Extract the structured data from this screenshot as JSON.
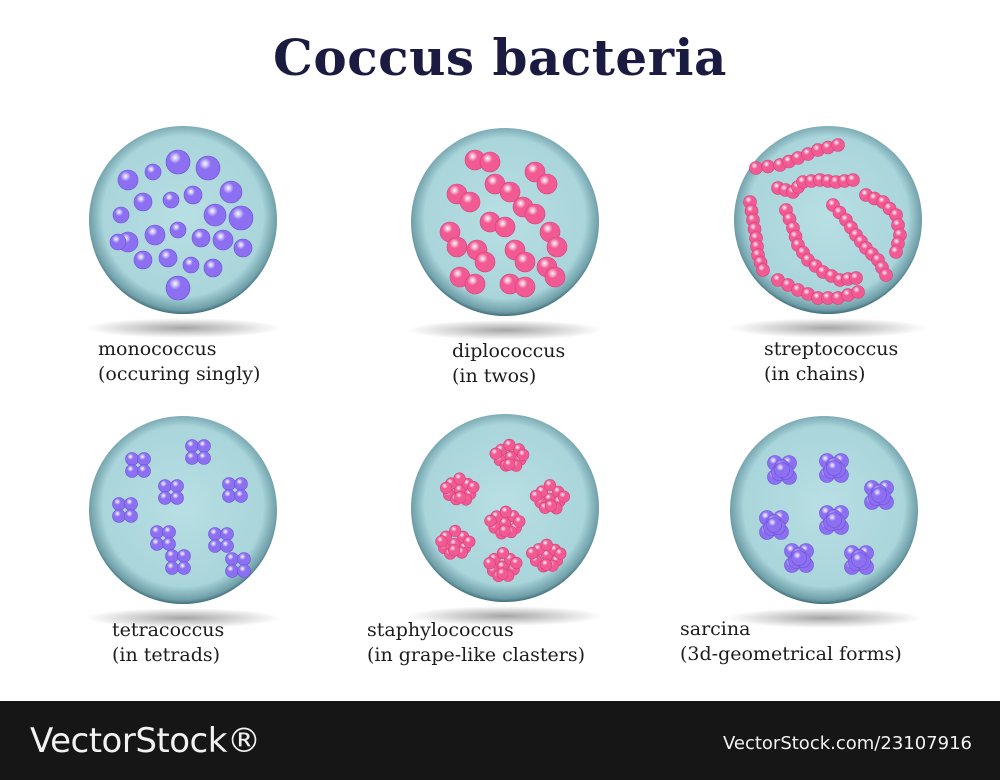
{
  "title": "Coccus bacteria",
  "colors": {
    "title": "#1b1a40",
    "dish": "#a9d5db",
    "dish_edge": "#3f6f7a",
    "violet": "#8d70f2",
    "pink": "#f25a93",
    "footer_bg": "#161616"
  },
  "panels": [
    {
      "name": "monococcus",
      "line1": "monococcus",
      "line2": "(occuring singly)",
      "shape": "single",
      "color": "violet"
    },
    {
      "name": "diplococcus",
      "line1": "diplococcus",
      "line2": "(in twos)",
      "shape": "pairs",
      "color": "pink"
    },
    {
      "name": "streptococcus",
      "line1": "streptococcus",
      "line2": "(in chains)",
      "shape": "chains",
      "color": "pink"
    },
    {
      "name": "tetracoccus",
      "line1": "tetracoccus",
      "line2": "(in tetrads)",
      "shape": "tetrads",
      "color": "violet"
    },
    {
      "name": "staphylococcus",
      "line1": "staphylococcus",
      "line2": "(in grape-like clasters)",
      "shape": "clusters",
      "color": "pink"
    },
    {
      "name": "sarcina",
      "line1": "sarcina",
      "line2": "(3d-geometrical forms)",
      "shape": "cubes",
      "color": "violet"
    }
  ],
  "footer": {
    "brand": "VectorStock®",
    "id": "VectorStock.com/23107916"
  }
}
